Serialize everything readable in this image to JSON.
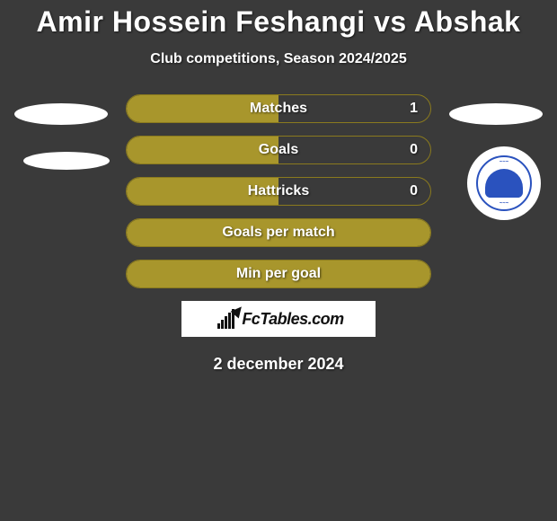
{
  "background_color": "#3a3a3a",
  "text_color": "#ffffff",
  "shadow": "1px 1px 2px rgba(0,0,0,0.6)",
  "title": "Amir Hossein Feshangi vs Abshak",
  "subtitle": "Club competitions, Season 2024/2025",
  "title_fontsize": 32,
  "subtitle_fontsize": 16,
  "left_player_silhouette": {
    "type": "ellipse-placeholder",
    "color": "#ffffff"
  },
  "right_player_silhouette": {
    "type": "ellipse-placeholder",
    "color": "#ffffff"
  },
  "club_badge": {
    "type": "circular-crest",
    "bg_color": "#ffffff",
    "accent_color": "#2a52be"
  },
  "stat_bar_style": {
    "fill_color": "#a8962c",
    "border_color": "#8a7a1e",
    "border_radius": 16,
    "height": 32,
    "label_fontsize": 16
  },
  "stats": [
    {
      "label": "Matches",
      "right_value": "1",
      "fill_pct": 50
    },
    {
      "label": "Goals",
      "right_value": "0",
      "fill_pct": 50
    },
    {
      "label": "Hattricks",
      "right_value": "0",
      "fill_pct": 50
    },
    {
      "label": "Goals per match",
      "right_value": "",
      "fill_pct": 100
    },
    {
      "label": "Min per goal",
      "right_value": "",
      "fill_pct": 100
    }
  ],
  "brand": {
    "text": "FcTables.com",
    "box_bg": "#ffffff",
    "text_color": "#111111",
    "fontsize": 18
  },
  "date": "2 december 2024",
  "date_fontsize": 18
}
